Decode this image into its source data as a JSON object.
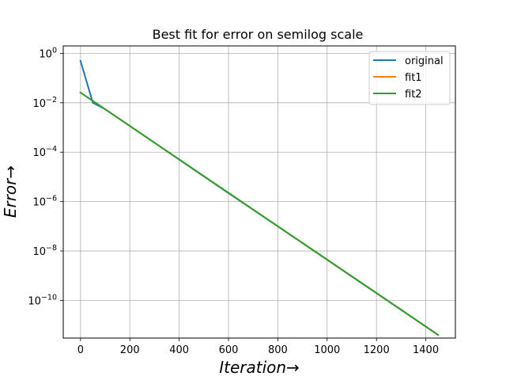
{
  "chart_data": {
    "type": "line",
    "title": "Best fit for error on semilog scale",
    "xlabel": "Iteration→",
    "ylabel": "Error→",
    "xscale": "linear",
    "yscale": "log",
    "xlim": [
      -70,
      1520
    ],
    "ylim": [
      3e-12,
      2
    ],
    "xticks": [
      0,
      200,
      400,
      600,
      800,
      1000,
      1200,
      1400
    ],
    "xtick_labels": [
      "0",
      "200",
      "400",
      "600",
      "800",
      "1000",
      "1200",
      "1400"
    ],
    "yticks": [
      1,
      0.01,
      0.0001,
      1e-06,
      1e-08,
      1e-10
    ],
    "ytick_labels": [
      {
        "base": "10",
        "exp": "0"
      },
      {
        "base": "10",
        "exp": "−2"
      },
      {
        "base": "10",
        "exp": "−4"
      },
      {
        "base": "10",
        "exp": "−6"
      },
      {
        "base": "10",
        "exp": "−8"
      },
      {
        "base": "10",
        "exp": "−10"
      }
    ],
    "grid": true,
    "legend_position": "top-right",
    "series": [
      {
        "name": "original",
        "color": "#1f77b4",
        "x": [
          0,
          50,
          100,
          200,
          400,
          600,
          800,
          1000,
          1200,
          1450
        ],
        "y": [
          0.5,
          0.01,
          0.0055,
          0.00115,
          5e-05,
          2.2e-06,
          1e-07,
          4.5e-09,
          2e-10,
          4e-12
        ]
      },
      {
        "name": "fit1",
        "color": "#ff7f0e",
        "x": [
          0,
          1450
        ],
        "y": [
          0.026,
          4e-12
        ]
      },
      {
        "name": "fit2",
        "color": "#2ca02c",
        "x": [
          0,
          1450
        ],
        "y": [
          0.026,
          4e-12
        ]
      }
    ]
  }
}
